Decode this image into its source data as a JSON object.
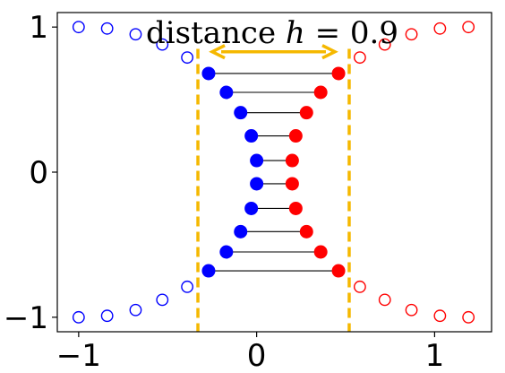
{
  "chart_data": {
    "type": "scatter",
    "xlim": [
      -1.12,
      1.32
    ],
    "ylim": [
      -1.1,
      1.1
    ],
    "x_ticks": [
      {
        "value": -1,
        "label": "−1"
      },
      {
        "value": 0,
        "label": "0"
      },
      {
        "value": 1,
        "label": "1"
      }
    ],
    "y_ticks": [
      {
        "value": 1,
        "label": "1"
      },
      {
        "value": 0,
        "label": "0"
      },
      {
        "value": -1,
        "label": "−1"
      }
    ],
    "grid": false,
    "annotation": {
      "prefix": "distance ",
      "var": "h",
      "suffix": " = 0.9"
    },
    "vlines": [
      -0.33,
      0.52
    ],
    "colors": {
      "left": "#0000ff",
      "right": "#ff0000",
      "guide": "#f5b800",
      "pair_line": "#000000"
    },
    "series": [
      {
        "marker": "open",
        "color": "#0000ff",
        "x": [
          -1.0,
          -0.84,
          -0.68,
          -0.53,
          -0.39,
          -0.39,
          -0.53,
          -0.68,
          -0.84,
          -1.0
        ],
        "y": [
          1.0,
          0.99,
          0.95,
          0.88,
          0.79,
          -0.79,
          -0.88,
          -0.95,
          -0.99,
          -1.0
        ]
      },
      {
        "marker": "open",
        "color": "#ff0000",
        "x": [
          0.58,
          0.72,
          0.87,
          1.03,
          1.19,
          1.19,
          1.03,
          0.87,
          0.72,
          0.58
        ],
        "y": [
          0.79,
          0.88,
          0.95,
          0.99,
          1.0,
          -1.0,
          -0.99,
          -0.95,
          -0.88,
          -0.79
        ]
      },
      {
        "marker": "filled",
        "color": "#0000ff",
        "x": [
          -0.27,
          -0.17,
          -0.09,
          -0.03,
          0.0,
          0.0,
          -0.03,
          -0.09,
          -0.17,
          -0.27
        ],
        "y": [
          0.68,
          0.55,
          0.41,
          0.25,
          0.08,
          -0.08,
          -0.25,
          -0.41,
          -0.55,
          -0.68
        ]
      },
      {
        "marker": "filled",
        "color": "#ff0000",
        "x": [
          0.46,
          0.36,
          0.28,
          0.22,
          0.2,
          0.2,
          0.22,
          0.28,
          0.36,
          0.46
        ],
        "y": [
          0.68,
          0.55,
          0.41,
          0.25,
          0.08,
          -0.08,
          -0.25,
          -0.41,
          -0.55,
          -0.68
        ]
      }
    ]
  }
}
